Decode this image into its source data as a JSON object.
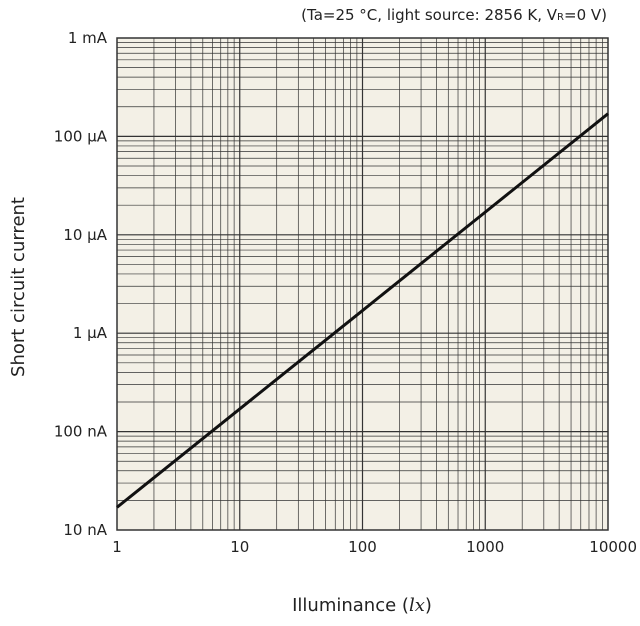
{
  "chart_data": {
    "type": "line",
    "title": "",
    "conditions": {
      "prefix": "(Ta=25 °C, light source: 2856 K, V",
      "subscript": "R",
      "suffix": "=0 V)"
    },
    "xlabel": {
      "text": "Illuminance (",
      "unit": "lx",
      "close": ")"
    },
    "ylabel": "Short circuit current",
    "x_scale": "log",
    "y_scale": "log",
    "xlim": [
      1,
      10000
    ],
    "ylim": [
      1e-08,
      0.001
    ],
    "x_ticks": [
      {
        "value": 1,
        "label": "1"
      },
      {
        "value": 10,
        "label": "10"
      },
      {
        "value": 100,
        "label": "100"
      },
      {
        "value": 1000,
        "label": "1000"
      },
      {
        "value": 10000,
        "label": "10000"
      }
    ],
    "y_ticks": [
      {
        "value": 1e-08,
        "label": "10 nA"
      },
      {
        "value": 1e-07,
        "label": "100 nA"
      },
      {
        "value": 1e-06,
        "label": "1 μA"
      },
      {
        "value": 1e-05,
        "label": "10 μA"
      },
      {
        "value": 0.0001,
        "label": "100 μA"
      },
      {
        "value": 0.001,
        "label": "1 mA"
      }
    ],
    "grid": true,
    "legend": "none",
    "series": [
      {
        "x": [
          1,
          10,
          100,
          1000,
          10000
        ],
        "y": [
          1.7e-08,
          1.7e-07,
          1.7e-06,
          1.7e-05,
          0.00017
        ]
      }
    ],
    "colors": {
      "plot_background": "#f3f0e6",
      "grid": "#333333",
      "line": "#111111",
      "text": "#222222"
    }
  }
}
